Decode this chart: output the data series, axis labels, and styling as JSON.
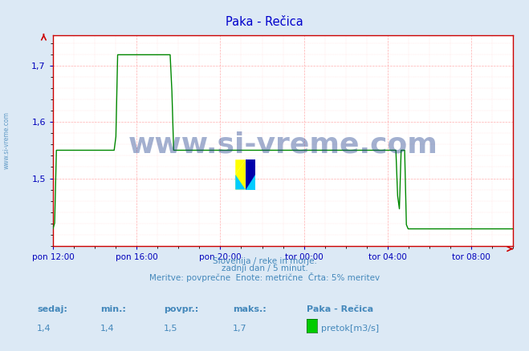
{
  "title": "Paka - Rečica",
  "line_color": "#008800",
  "background_color": "#dce9f5",
  "plot_bg_color": "#ffffff",
  "grid_color_major": "#ff9999",
  "grid_color_minor": "#ffcccc",
  "axis_color": "#cc0000",
  "tick_color": "#0000bb",
  "label_color": "#4488bb",
  "title_color": "#0000cc",
  "watermark_color": "#1a3a8a",
  "ylim": [
    1.38,
    1.755
  ],
  "yticks": [
    1.5,
    1.6,
    1.7
  ],
  "ytick_labels": [
    "1,5",
    "1,6",
    "1,7"
  ],
  "xtick_labels": [
    "pon 12:00",
    "pon 16:00",
    "pon 20:00",
    "tor 00:00",
    "tor 04:00",
    "tor 08:00"
  ],
  "xtick_hours": [
    0,
    4,
    8,
    12,
    16,
    20
  ],
  "total_hours": 22,
  "footer_line1": "Slovenija / reke in morje.",
  "footer_line2": "zadnji dan / 5 minut.",
  "footer_line3": "Meritve: povprečne  Enote: metrične  Črta: 5% meritev",
  "stat_labels": [
    "sedaj:",
    "min.:",
    "povpr.:",
    "maks.:"
  ],
  "stat_values": [
    "1,4",
    "1,4",
    "1,5",
    "1,7"
  ],
  "station_name": "Paka - Rečica",
  "legend_label": "pretok[m3/s]",
  "legend_color": "#00cc00",
  "watermark": "www.si-vreme.com",
  "sidewater": "www.si-vreme.com"
}
